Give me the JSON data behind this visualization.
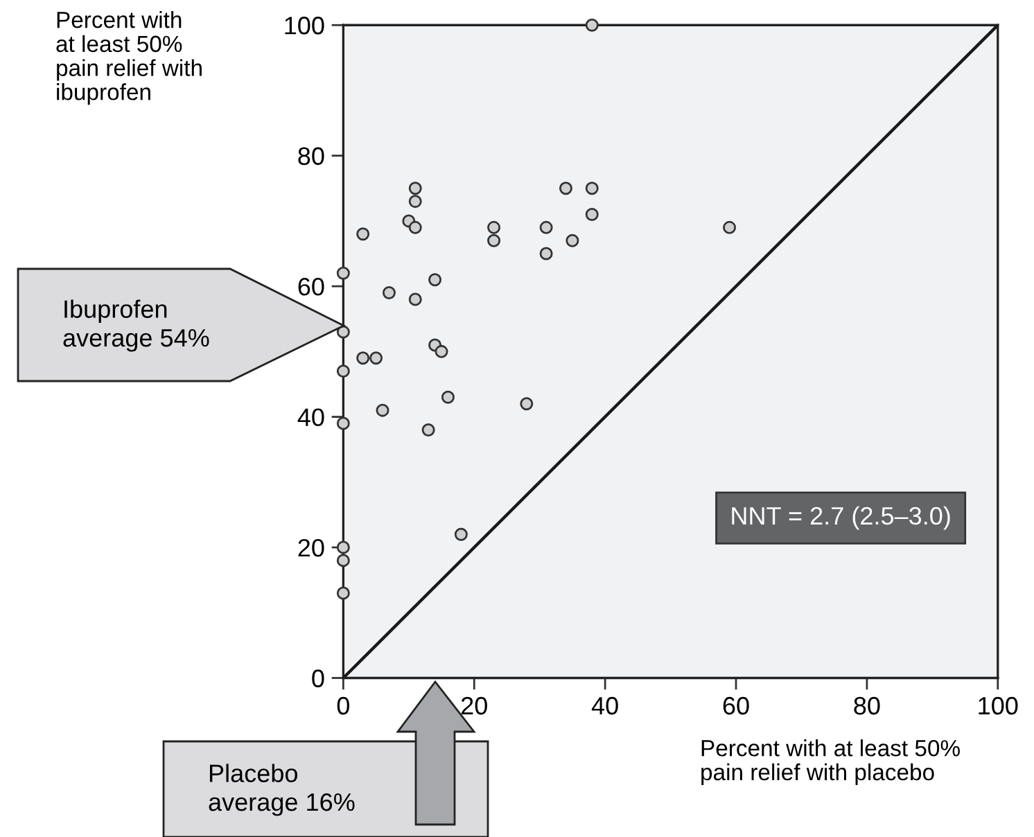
{
  "chart_data": {
    "type": "scatter",
    "xlabel": "Percent with at least 50%\npain relief with placebo",
    "series": [
      {
        "color": "#d0d0d0",
        "marker": "circle",
        "x": [
          38,
          11,
          11,
          10,
          11,
          3,
          0,
          7,
          11,
          14,
          0,
          14,
          15,
          3,
          5,
          0,
          6,
          16,
          0,
          13,
          28,
          18,
          0,
          0,
          0,
          23,
          23,
          31,
          31,
          34,
          38,
          38,
          35,
          59
        ],
        "values": [
          100,
          75,
          73,
          70,
          69,
          68,
          62,
          59,
          58,
          61,
          53,
          51,
          50,
          49,
          49,
          47,
          41,
          43,
          39,
          38,
          42,
          22,
          20,
          18,
          13,
          69,
          67,
          69,
          65,
          75,
          75,
          71,
          67,
          69
        ]
      },
      {
        "type": "line",
        "color": "#1a1a1a",
        "marker": "none",
        "line_style": "solid",
        "x": [
          0,
          100
        ],
        "values": [
          0,
          100
        ]
      }
    ],
    "xlim": [
      0,
      100
    ],
    "ylim": [
      0,
      100
    ],
    "xticks": [
      0,
      20,
      40,
      60,
      80,
      100
    ],
    "yticks": [
      0,
      20,
      40,
      60,
      80,
      100
    ],
    "grid": false,
    "legend": false,
    "annotations": [
      "Percent with\nat least 50%\npain relief with\nibuprofen",
      "Ibuprofen\naverage 54%",
      "Placebo\naverage 16%",
      "NNT = 2.7 (2.5–3.0)"
    ]
  }
}
